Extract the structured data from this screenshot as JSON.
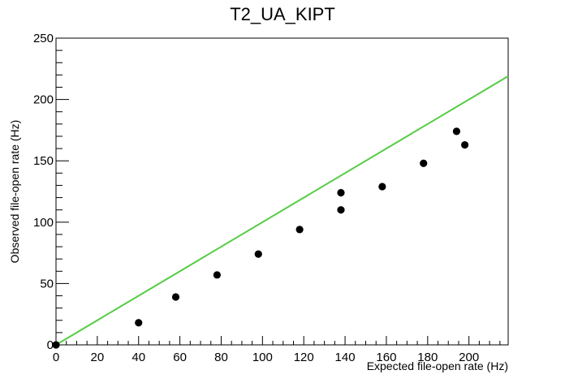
{
  "chart_data": {
    "type": "scatter",
    "title": "T2_UA_KIPT",
    "xlabel": "Expected file-open rate (Hz)",
    "ylabel": "Observed file-open rate (Hz)",
    "xlim": [
      0,
      219
    ],
    "ylim": [
      0,
      250
    ],
    "xticks": [
      "0",
      "20",
      "40",
      "60",
      "80",
      "100",
      "120",
      "140",
      "160",
      "180",
      "200"
    ],
    "yticks": [
      "0",
      "50",
      "100",
      "150",
      "200",
      "250"
    ],
    "grid": false,
    "points": [
      {
        "x": 0,
        "y": 0
      },
      {
        "x": 40,
        "y": 18
      },
      {
        "x": 58,
        "y": 39
      },
      {
        "x": 78,
        "y": 57
      },
      {
        "x": 98,
        "y": 74
      },
      {
        "x": 118,
        "y": 94
      },
      {
        "x": 138,
        "y": 110
      },
      {
        "x": 138,
        "y": 124
      },
      {
        "x": 158,
        "y": 129
      },
      {
        "x": 178,
        "y": 148
      },
      {
        "x": 194,
        "y": 174
      },
      {
        "x": 198,
        "y": 163
      }
    ],
    "reference_line": {
      "x": [
        0,
        219
      ],
      "y": [
        0,
        219
      ],
      "color": "#55cc44"
    },
    "marker_color": "#000000"
  }
}
